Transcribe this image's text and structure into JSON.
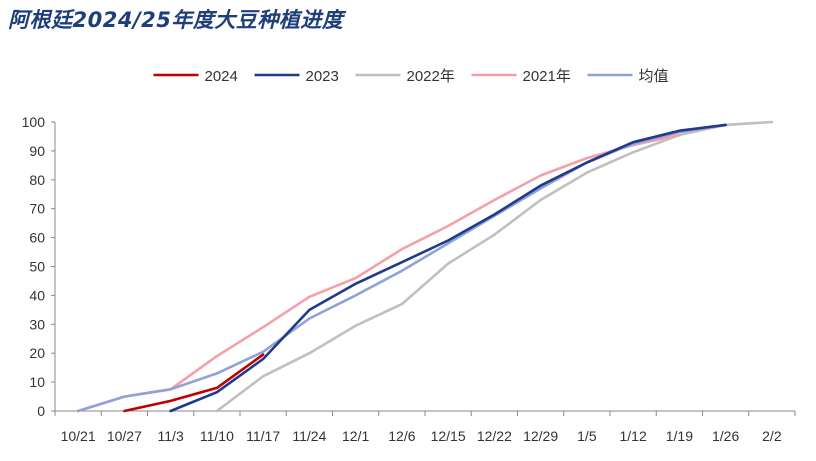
{
  "chart_data": {
    "type": "line",
    "title": "阿根廷2024/25年度大豆种植进度",
    "xlabel": "",
    "ylabel": "",
    "categories": [
      "10/21",
      "10/27",
      "11/3",
      "11/10",
      "11/17",
      "11/24",
      "12/1",
      "12/6",
      "12/15",
      "12/22",
      "12/29",
      "1/5",
      "1/12",
      "1/19",
      "1/26",
      "2/2"
    ],
    "ylim": [
      0,
      100
    ],
    "yticks": [
      0,
      10,
      20,
      30,
      40,
      50,
      60,
      70,
      80,
      90,
      100
    ],
    "grid": false,
    "legend": "top",
    "series": [
      {
        "name": "2024",
        "color": "#c00000",
        "points": [
          [
            1,
            0
          ],
          [
            2,
            3.5
          ],
          [
            3,
            8
          ],
          [
            4,
            19.5
          ]
        ]
      },
      {
        "name": "2023",
        "color": "#1f3a8a",
        "points": [
          [
            2,
            0
          ],
          [
            3,
            6.5
          ],
          [
            4,
            18
          ],
          [
            5,
            35
          ],
          [
            6,
            44
          ],
          [
            7,
            51.5
          ],
          [
            8,
            59
          ],
          [
            9,
            68
          ],
          [
            10,
            78
          ],
          [
            11,
            86
          ],
          [
            12,
            93
          ],
          [
            13,
            97
          ],
          [
            14,
            99
          ]
        ]
      },
      {
        "name": "2022年",
        "color": "#c0c0c0",
        "points": [
          [
            3,
            0
          ],
          [
            4,
            12
          ],
          [
            5,
            20
          ],
          [
            6,
            29.5
          ],
          [
            7,
            37
          ],
          [
            8,
            51
          ],
          [
            9,
            61
          ],
          [
            10,
            73
          ],
          [
            11,
            82.5
          ],
          [
            12,
            89.5
          ],
          [
            13,
            95.5
          ],
          [
            14,
            99
          ],
          [
            15,
            100
          ]
        ]
      },
      {
        "name": "2021年",
        "color": "#f4a0aa",
        "points": [
          [
            0,
            0
          ],
          [
            1,
            5
          ],
          [
            2,
            7.5
          ],
          [
            3,
            19
          ],
          [
            4,
            29
          ],
          [
            5,
            39.5
          ],
          [
            6,
            46
          ],
          [
            7,
            56
          ],
          [
            8,
            64
          ],
          [
            9,
            73
          ],
          [
            10,
            81.5
          ],
          [
            11,
            87.5
          ],
          [
            12,
            92
          ],
          [
            13,
            95.5
          ]
        ]
      },
      {
        "name": "均值",
        "color": "#8ea3d8",
        "points": [
          [
            0,
            0
          ],
          [
            1,
            5
          ],
          [
            2,
            7.5
          ],
          [
            3,
            13
          ],
          [
            4,
            20.5
          ],
          [
            5,
            32
          ],
          [
            6,
            40
          ],
          [
            7,
            48.5
          ],
          [
            8,
            58
          ],
          [
            9,
            67.5
          ],
          [
            10,
            77
          ],
          [
            11,
            86
          ],
          [
            12,
            92.5
          ],
          [
            13,
            96.5
          ],
          [
            14,
            99
          ]
        ]
      }
    ]
  }
}
